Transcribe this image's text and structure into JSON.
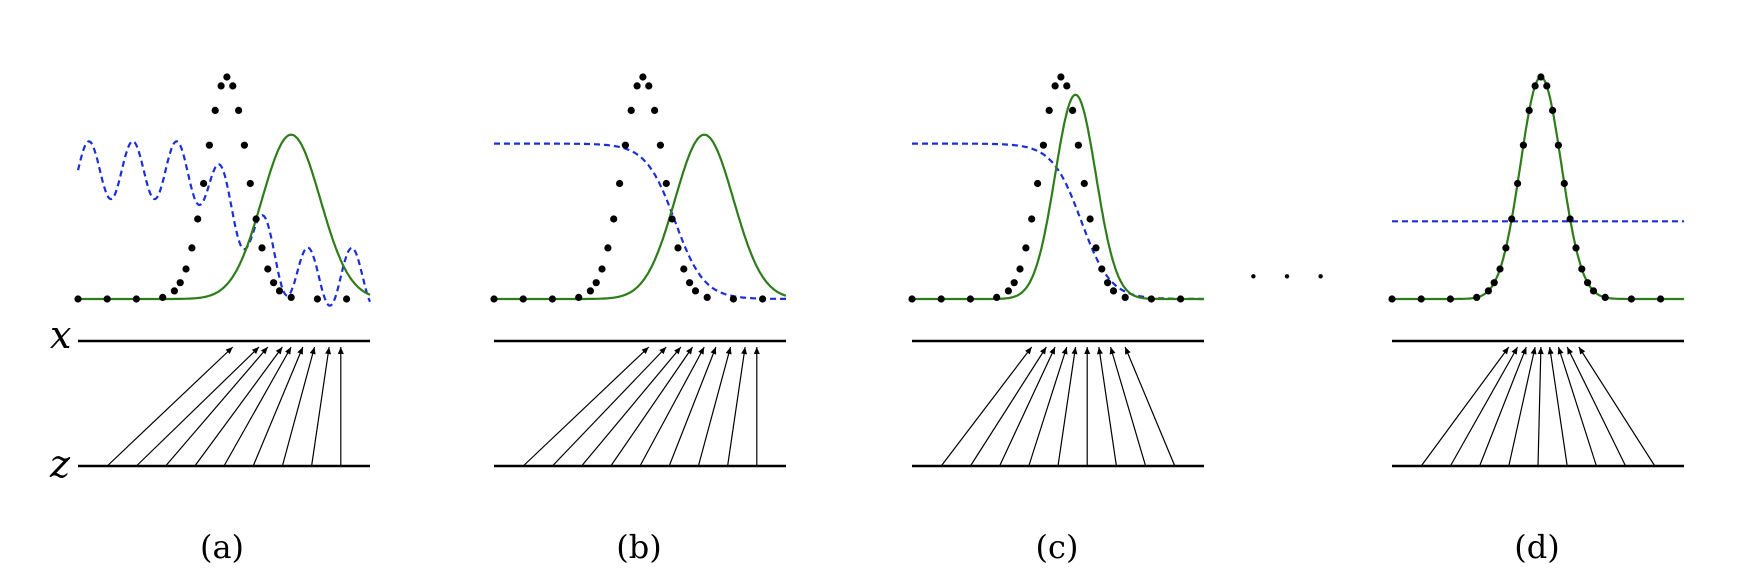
{
  "axis_labels": {
    "x": "x",
    "z": "z"
  },
  "ellipsis": "· · ·",
  "panels": [
    {
      "id": "a",
      "label": "(a)",
      "generator": {
        "mean": 0.73,
        "sd": 0.1,
        "amp": 0.74
      },
      "discriminator": {
        "type": "oscillating",
        "level_left": 0.58,
        "level_right": 0.1,
        "ripple_amp": 0.13,
        "ripple_period": 0.15
      },
      "arrows_z": [
        0.1,
        0.2,
        0.3,
        0.4,
        0.5,
        0.6,
        0.7,
        0.8,
        0.9
      ],
      "arrows_x": [
        0.53,
        0.62,
        0.65,
        0.7,
        0.73,
        0.77,
        0.81,
        0.86,
        0.9
      ]
    },
    {
      "id": "b",
      "label": "(b)",
      "generator": {
        "mean": 0.72,
        "sd": 0.1,
        "amp": 0.74
      },
      "discriminator": {
        "type": "sigmoid",
        "level_left": 0.7,
        "level_right": 0.0,
        "center": 0.62,
        "width": 0.05
      },
      "arrows_z": [
        0.1,
        0.2,
        0.3,
        0.4,
        0.5,
        0.6,
        0.7,
        0.8,
        0.9
      ],
      "arrows_x": [
        0.53,
        0.59,
        0.64,
        0.68,
        0.72,
        0.76,
        0.81,
        0.86,
        0.9
      ]
    },
    {
      "id": "c",
      "label": "(c)",
      "generator": {
        "mean": 0.56,
        "sd": 0.07,
        "amp": 0.92
      },
      "discriminator": {
        "type": "sigmoid",
        "level_left": 0.7,
        "level_right": 0.0,
        "center": 0.58,
        "width": 0.05
      },
      "arrows_z": [
        0.1,
        0.2,
        0.3,
        0.4,
        0.5,
        0.6,
        0.7,
        0.8,
        0.9
      ],
      "arrows_x": [
        0.41,
        0.46,
        0.49,
        0.53,
        0.56,
        0.6,
        0.64,
        0.68,
        0.73
      ]
    },
    {
      "id": "d",
      "label": "(d)",
      "generator": {
        "mean": 0.51,
        "sd": 0.07,
        "amp": 1.0
      },
      "discriminator": {
        "type": "flat",
        "level_left": 0.35,
        "level_right": 0.35
      },
      "arrows_z": [
        0.1,
        0.2,
        0.3,
        0.4,
        0.5,
        0.6,
        0.7,
        0.8,
        0.9
      ],
      "arrows_x": [
        0.4,
        0.43,
        0.46,
        0.49,
        0.51,
        0.54,
        0.57,
        0.6,
        0.64
      ]
    }
  ],
  "data_distribution": {
    "mean": 0.51,
    "sd": 0.07,
    "amp": 1.0,
    "sample_x": [
      0.0,
      0.1,
      0.2,
      0.29,
      0.33,
      0.35,
      0.37,
      0.39,
      0.41,
      0.43,
      0.45,
      0.47,
      0.49,
      0.51,
      0.53,
      0.55,
      0.57,
      0.59,
      0.61,
      0.63,
      0.65,
      0.67,
      0.69,
      0.73,
      0.82,
      0.92
    ]
  }
}
